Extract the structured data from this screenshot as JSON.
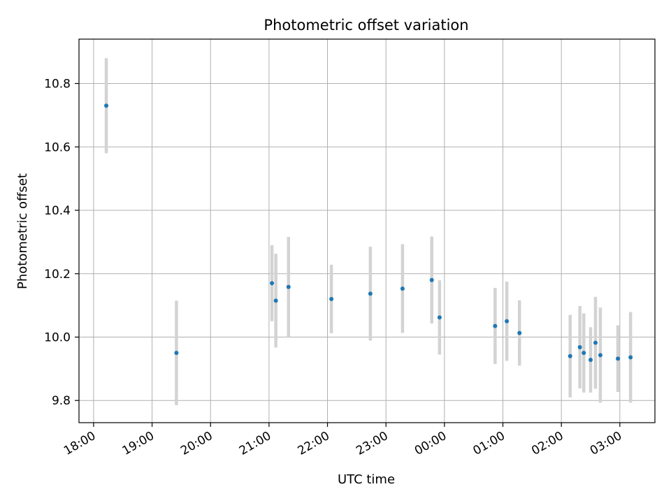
{
  "chart_data": {
    "type": "scatter",
    "title": "Photometric offset variation",
    "xlabel": "UTC time",
    "ylabel": "Photometric offset",
    "x_tick_labels": [
      "18:00",
      "19:00",
      "20:00",
      "21:00",
      "22:00",
      "23:00",
      "00:00",
      "01:00",
      "02:00",
      "03:00"
    ],
    "y_tick_labels": [
      "9.8",
      "10.0",
      "10.2",
      "10.4",
      "10.6",
      "10.8"
    ],
    "y_ticks": [
      9.8,
      10.0,
      10.2,
      10.4,
      10.6,
      10.8
    ],
    "xlim": [
      "17:45",
      "03:36"
    ],
    "ylim": [
      9.73,
      10.94
    ],
    "grid": true,
    "point_color": "#1f77b4",
    "errorbar_color": "#d3d3d3",
    "points": [
      {
        "time": "18:13",
        "y": 10.73,
        "err": 0.15
      },
      {
        "time": "19:25",
        "y": 9.95,
        "err": 0.165
      },
      {
        "time": "21:03",
        "y": 10.17,
        "err": 0.12
      },
      {
        "time": "21:07",
        "y": 10.115,
        "err": 0.148
      },
      {
        "time": "21:20",
        "y": 10.158,
        "err": 0.158
      },
      {
        "time": "22:04",
        "y": 10.12,
        "err": 0.108
      },
      {
        "time": "22:44",
        "y": 10.137,
        "err": 0.148
      },
      {
        "time": "23:17",
        "y": 10.153,
        "err": 0.14
      },
      {
        "time": "23:47",
        "y": 10.18,
        "err": 0.137
      },
      {
        "time": "23:55",
        "y": 10.062,
        "err": 0.117
      },
      {
        "time": "00:52",
        "y": 10.035,
        "err": 0.12
      },
      {
        "time": "01:04",
        "y": 10.05,
        "err": 0.125
      },
      {
        "time": "01:17",
        "y": 10.013,
        "err": 0.103
      },
      {
        "time": "02:09",
        "y": 9.94,
        "err": 0.13
      },
      {
        "time": "02:19",
        "y": 9.968,
        "err": 0.13
      },
      {
        "time": "02:23",
        "y": 9.95,
        "err": 0.125
      },
      {
        "time": "02:30",
        "y": 9.928,
        "err": 0.103
      },
      {
        "time": "02:35",
        "y": 9.982,
        "err": 0.145
      },
      {
        "time": "02:40",
        "y": 9.943,
        "err": 0.15
      },
      {
        "time": "02:58",
        "y": 9.932,
        "err": 0.105
      },
      {
        "time": "03:11",
        "y": 9.936,
        "err": 0.143
      }
    ]
  }
}
